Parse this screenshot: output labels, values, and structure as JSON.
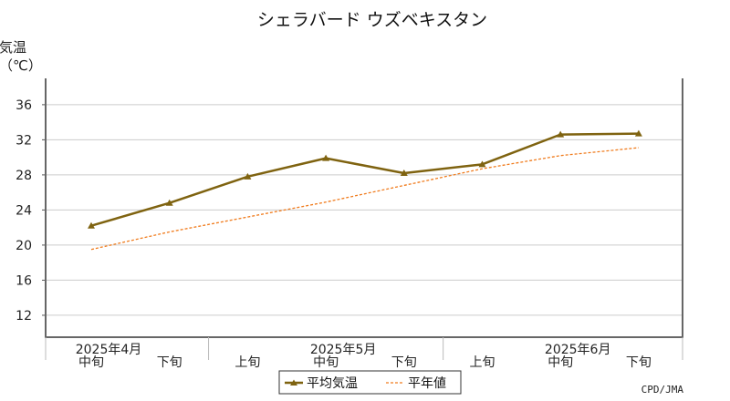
{
  "chart_data": {
    "type": "line",
    "title": "シェラバード ウズベキスタン",
    "ylabel": "気温",
    "yunit": "（℃）",
    "ylim": [
      9.5,
      39
    ],
    "yticks": [
      12,
      16,
      20,
      24,
      28,
      32,
      36
    ],
    "grid": true,
    "categories": [
      "中旬",
      "下旬",
      "上旬",
      "中旬",
      "下旬",
      "上旬",
      "中旬",
      "下旬"
    ],
    "month_labels": [
      {
        "label": "2025年4月",
        "index": 0
      },
      {
        "label": "2025年5月",
        "index": 3
      },
      {
        "label": "2025年6月",
        "index": 6
      }
    ],
    "series": [
      {
        "name": "平均気温",
        "values": [
          22.2,
          24.8,
          27.8,
          29.9,
          28.2,
          29.2,
          32.6,
          32.7
        ],
        "color": "#7f6310",
        "style": "solid",
        "marker": "triangle"
      },
      {
        "name": "平年値",
        "values": [
          19.5,
          21.5,
          23.2,
          24.9,
          26.8,
          28.7,
          30.2,
          31.1
        ],
        "color": "#f07c1e",
        "style": "dashed"
      }
    ],
    "legend_position": "bottom-center",
    "credit": "CPD/JMA"
  }
}
